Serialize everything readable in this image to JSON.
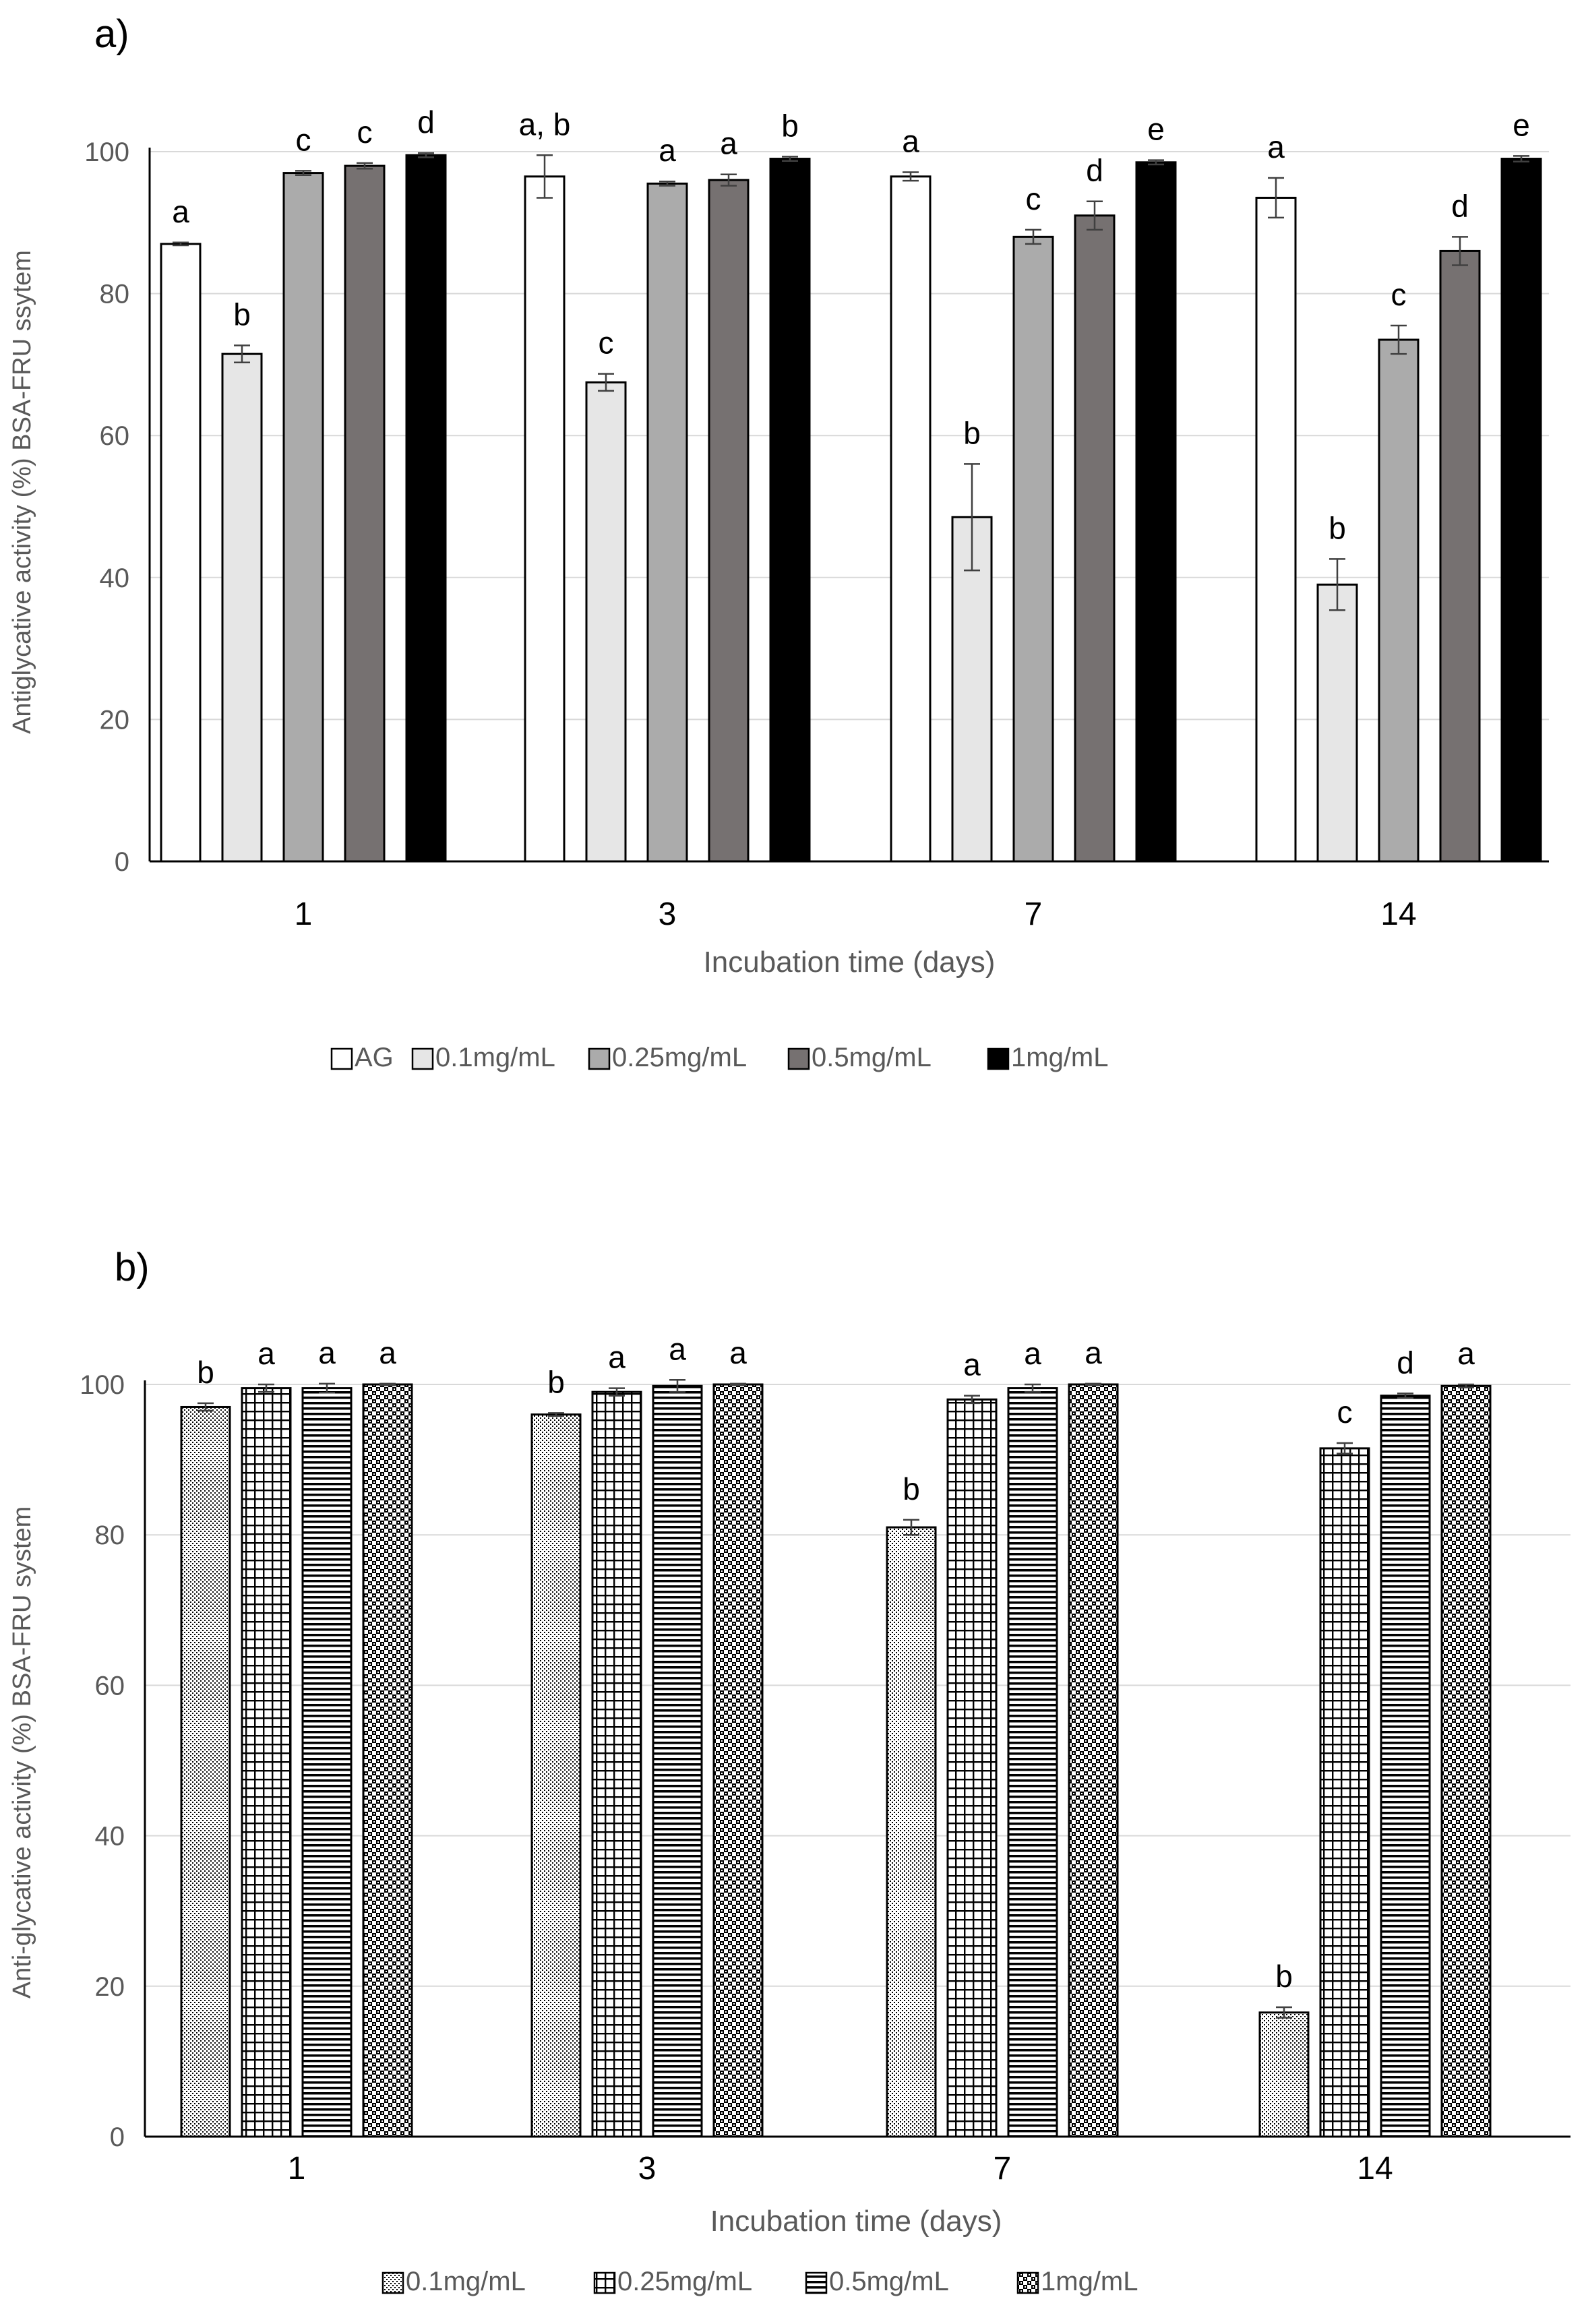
{
  "chart_data": [
    {
      "panel_label": "a)",
      "type": "bar",
      "ylabel": "Antiglycative activity (%) BSA-FRU ssytem",
      "xlabel": "Incubation time (days)",
      "ylim": [
        0,
        100
      ],
      "yticks": [
        0,
        20,
        40,
        60,
        80,
        100
      ],
      "grid": true,
      "categories": [
        "1",
        "3",
        "7",
        "14"
      ],
      "legend_position": "bottom",
      "series": [
        {
          "name": "AG",
          "color": "#ffffff",
          "pattern": "solid",
          "values": [
            87,
            96.5,
            96.5,
            93.5
          ],
          "errors": [
            0.2,
            3,
            0.6,
            2.8
          ],
          "letters": [
            "a",
            "a, b",
            "a",
            "a"
          ]
        },
        {
          "name": "0.1mg/mL",
          "color": "#e6e6e6",
          "pattern": "solid",
          "values": [
            71.5,
            67.5,
            48.5,
            39
          ],
          "errors": [
            1.2,
            1.2,
            7.5,
            3.6
          ],
          "letters": [
            "b",
            "c",
            "b",
            "b"
          ]
        },
        {
          "name": "0.25mg/mL",
          "color": "#ababab",
          "pattern": "solid",
          "values": [
            97,
            95.5,
            88,
            73.5
          ],
          "errors": [
            0.3,
            0.3,
            1,
            2
          ],
          "letters": [
            "c",
            "a",
            "c",
            "c"
          ]
        },
        {
          "name": "0.5mg/mL",
          "color": "#767171",
          "pattern": "solid",
          "values": [
            98,
            96,
            91,
            86
          ],
          "errors": [
            0.4,
            0.8,
            2,
            2
          ],
          "letters": [
            "c",
            "a",
            "d",
            "d"
          ]
        },
        {
          "name": "1mg/mL",
          "color": "#000000",
          "pattern": "solid",
          "values": [
            99.5,
            99,
            98.5,
            99
          ],
          "errors": [
            0.3,
            0.3,
            0.3,
            0.4
          ],
          "letters": [
            "d",
            "b",
            "e",
            "e"
          ]
        }
      ]
    },
    {
      "panel_label": "b)",
      "type": "bar",
      "ylabel": "Anti-glycative activity (%) BSA-FRU  system",
      "xlabel": "Incubation time (days)",
      "ylim": [
        0,
        100
      ],
      "yticks": [
        0,
        20,
        40,
        60,
        80,
        100
      ],
      "grid": true,
      "categories": [
        "1",
        "3",
        "7",
        "14"
      ],
      "legend_position": "bottom",
      "series": [
        {
          "name": "0.1mg/mL",
          "color": "#000000",
          "pattern": "dots",
          "values": [
            97,
            96,
            81,
            16.5
          ],
          "errors": [
            0.5,
            0.2,
            1,
            0.7
          ],
          "letters": [
            "b",
            "b",
            "b",
            "b"
          ]
        },
        {
          "name": "0.25mg/mL",
          "color": "#000000",
          "pattern": "grid",
          "values": [
            99.5,
            99,
            98,
            91.5
          ],
          "errors": [
            0.5,
            0.5,
            0.5,
            0.7
          ],
          "letters": [
            "a",
            "a",
            "a",
            "c"
          ]
        },
        {
          "name": "0.5mg/mL",
          "color": "#000000",
          "pattern": "hlines",
          "values": [
            99.5,
            99.8,
            99.5,
            98.5
          ],
          "errors": [
            0.6,
            0.8,
            0.5,
            0.3
          ],
          "letters": [
            "a",
            "a",
            "a",
            "d"
          ]
        },
        {
          "name": "1mg/mL",
          "color": "#000000",
          "pattern": "checker",
          "values": [
            100,
            100,
            100,
            99.8
          ],
          "errors": [
            0.1,
            0.1,
            0.1,
            0.2
          ],
          "letters": [
            "a",
            "a",
            "a",
            "a"
          ]
        }
      ]
    }
  ]
}
